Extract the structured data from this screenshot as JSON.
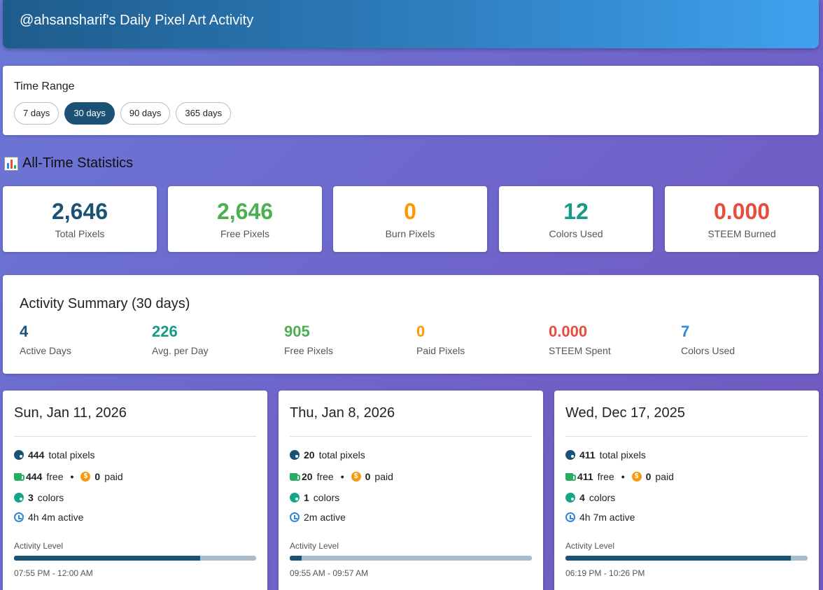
{
  "header": {
    "title": "@ahsansharif's Daily Pixel Art Activity"
  },
  "time_range": {
    "label": "Time Range",
    "options": [
      "7 days",
      "30 days",
      "90 days",
      "365 days"
    ],
    "selected": "30 days"
  },
  "all_time": {
    "title": "All-Time Statistics",
    "icon": "bar-chart-icon",
    "stats": [
      {
        "value": "2,646",
        "label": "Total Pixels",
        "color": "#1a5276"
      },
      {
        "value": "2,646",
        "label": "Free Pixels",
        "color": "#4caf50"
      },
      {
        "value": "0",
        "label": "Burn Pixels",
        "color": "#ff9800"
      },
      {
        "value": "12",
        "label": "Colors Used",
        "color": "#17998a"
      },
      {
        "value": "0.000",
        "label": "STEEM Burned",
        "color": "#e74c3c"
      }
    ]
  },
  "summary": {
    "title": "Activity Summary (30 days)",
    "items": [
      {
        "value": "4",
        "label": "Active Days",
        "color": "#1a5276"
      },
      {
        "value": "226",
        "label": "Avg. per Day",
        "color": "#17998a"
      },
      {
        "value": "905",
        "label": "Free Pixels",
        "color": "#4caf50"
      },
      {
        "value": "0",
        "label": "Paid Pixels",
        "color": "#ff9800"
      },
      {
        "value": "0.000",
        "label": "STEEM Spent",
        "color": "#e74c3c"
      },
      {
        "value": "7",
        "label": "Colors Used",
        "color": "#2e86de"
      }
    ]
  },
  "days": [
    {
      "date": "Sun, Jan 11, 2026",
      "total": "444",
      "total_text": "total pixels",
      "free": "444",
      "free_text": "free",
      "paid": "0",
      "paid_text": "paid",
      "colors": "3",
      "colors_text": "colors",
      "active": "4h 4m active",
      "level_label": "Activity Level",
      "level": 0.77,
      "time_range": "07:55 PM - 12:00 AM"
    },
    {
      "date": "Thu, Jan 8, 2026",
      "total": "20",
      "total_text": "total pixels",
      "free": "20",
      "free_text": "free",
      "paid": "0",
      "paid_text": "paid",
      "colors": "1",
      "colors_text": "colors",
      "active": "2m active",
      "level_label": "Activity Level",
      "level": 0.05,
      "time_range": "09:55 AM - 09:57 AM"
    },
    {
      "date": "Wed, Dec 17, 2025",
      "total": "411",
      "total_text": "total pixels",
      "free": "411",
      "free_text": "free",
      "paid": "0",
      "paid_text": "paid",
      "colors": "4",
      "colors_text": "colors",
      "active": "4h 7m active",
      "level_label": "Activity Level",
      "level": 0.93,
      "time_range": "06:19 PM - 10:26 PM"
    }
  ],
  "icons": {
    "palette": "palette-icon",
    "free": "coffee-cup-icon",
    "paid": "coin-icon",
    "colors": "palette-icon",
    "time": "clock-icon"
  },
  "coin_glyph": "$",
  "separator": "•"
}
